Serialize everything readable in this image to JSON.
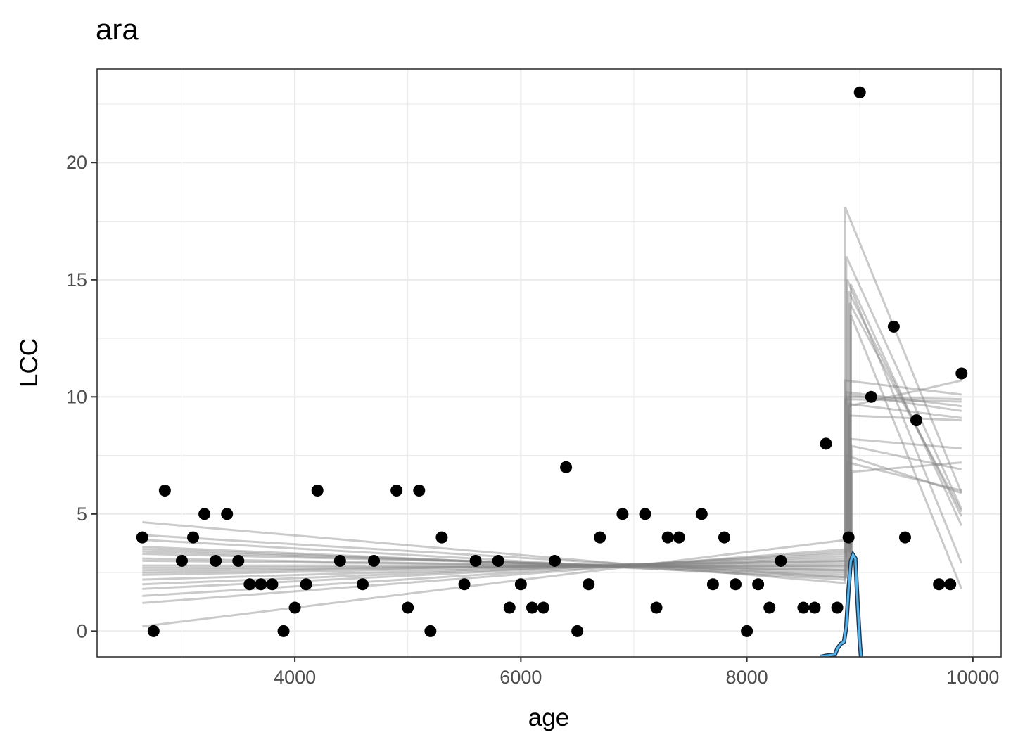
{
  "chart_data": {
    "type": "scatter",
    "title": "ara",
    "xlabel": "age",
    "ylabel": "LCC",
    "xlim": [
      2250,
      10250
    ],
    "ylim": [
      -1.1,
      24
    ],
    "x_ticks": [
      4000,
      6000,
      8000,
      10000
    ],
    "y_ticks": [
      0,
      5,
      10,
      15,
      20
    ],
    "grid": true,
    "colors": {
      "points": "#000000",
      "fit_lines": "#808080",
      "density_curve": "#56B4E9",
      "panel_border": "#333333",
      "grid_major": "#ebebeb"
    },
    "points": [
      {
        "x": 2650,
        "y": 4
      },
      {
        "x": 2750,
        "y": 0
      },
      {
        "x": 2850,
        "y": 6
      },
      {
        "x": 3000,
        "y": 3
      },
      {
        "x": 3100,
        "y": 4
      },
      {
        "x": 3200,
        "y": 5
      },
      {
        "x": 3300,
        "y": 3
      },
      {
        "x": 3400,
        "y": 5
      },
      {
        "x": 3500,
        "y": 3
      },
      {
        "x": 3600,
        "y": 2
      },
      {
        "x": 3700,
        "y": 2
      },
      {
        "x": 3800,
        "y": 2
      },
      {
        "x": 3900,
        "y": 0
      },
      {
        "x": 4000,
        "y": 1
      },
      {
        "x": 4100,
        "y": 2
      },
      {
        "x": 4200,
        "y": 6
      },
      {
        "x": 4400,
        "y": 3
      },
      {
        "x": 4600,
        "y": 2
      },
      {
        "x": 4700,
        "y": 3
      },
      {
        "x": 4900,
        "y": 6
      },
      {
        "x": 5000,
        "y": 1
      },
      {
        "x": 5100,
        "y": 6
      },
      {
        "x": 5200,
        "y": 0
      },
      {
        "x": 5300,
        "y": 4
      },
      {
        "x": 5500,
        "y": 2
      },
      {
        "x": 5600,
        "y": 3
      },
      {
        "x": 5800,
        "y": 3
      },
      {
        "x": 5900,
        "y": 1
      },
      {
        "x": 6000,
        "y": 2
      },
      {
        "x": 6100,
        "y": 1
      },
      {
        "x": 6200,
        "y": 1
      },
      {
        "x": 6300,
        "y": 3
      },
      {
        "x": 6400,
        "y": 7
      },
      {
        "x": 6500,
        "y": 0
      },
      {
        "x": 6600,
        "y": 2
      },
      {
        "x": 6700,
        "y": 4
      },
      {
        "x": 6900,
        "y": 5
      },
      {
        "x": 7100,
        "y": 5
      },
      {
        "x": 7200,
        "y": 1
      },
      {
        "x": 7300,
        "y": 4
      },
      {
        "x": 7400,
        "y": 4
      },
      {
        "x": 7600,
        "y": 5
      },
      {
        "x": 7700,
        "y": 2
      },
      {
        "x": 7800,
        "y": 4
      },
      {
        "x": 7900,
        "y": 2
      },
      {
        "x": 8000,
        "y": 0
      },
      {
        "x": 8100,
        "y": 2
      },
      {
        "x": 8200,
        "y": 1
      },
      {
        "x": 8300,
        "y": 3
      },
      {
        "x": 8500,
        "y": 1
      },
      {
        "x": 8600,
        "y": 1
      },
      {
        "x": 8700,
        "y": 8
      },
      {
        "x": 8800,
        "y": 1
      },
      {
        "x": 8900,
        "y": 4
      },
      {
        "x": 9000,
        "y": 23
      },
      {
        "x": 9100,
        "y": 10
      },
      {
        "x": 9300,
        "y": 13
      },
      {
        "x": 9400,
        "y": 4
      },
      {
        "x": 9500,
        "y": 9
      },
      {
        "x": 9700,
        "y": 2
      },
      {
        "x": 9800,
        "y": 2
      },
      {
        "x": 9900,
        "y": 11
      }
    ],
    "fit_lines": {
      "x_start": 2650,
      "x_end": 9900,
      "segments": [
        {
          "break": 8870,
          "pre": [
            4.65,
            2.05
          ],
          "post": [
            18.1,
            5.9
          ]
        },
        {
          "break": 8880,
          "pre": [
            4.1,
            2.3
          ],
          "post": [
            16.0,
            5.2
          ]
        },
        {
          "break": 8890,
          "pre": [
            0.2,
            3.9
          ],
          "post": [
            15.0,
            2.9
          ]
        },
        {
          "break": 8900,
          "pre": [
            1.2,
            3.5
          ],
          "post": [
            14.5,
            4.9
          ]
        },
        {
          "break": 8910,
          "pre": [
            1.5,
            3.4
          ],
          "post": [
            14.0,
            5.1
          ]
        },
        {
          "break": 8920,
          "pre": [
            3.5,
            2.4
          ],
          "post": [
            13.5,
            1.8
          ]
        },
        {
          "break": 8870,
          "pre": [
            3.9,
            2.2
          ],
          "post": [
            10.7,
            10.1
          ]
        },
        {
          "break": 8880,
          "pre": [
            2.0,
            3.2
          ],
          "post": [
            10.2,
            9.6
          ]
        },
        {
          "break": 8890,
          "pre": [
            3.3,
            2.6
          ],
          "post": [
            10.0,
            9.9
          ]
        },
        {
          "break": 8900,
          "pre": [
            2.8,
            2.8
          ],
          "post": [
            9.6,
            10.7
          ]
        },
        {
          "break": 8910,
          "pre": [
            2.6,
            2.9
          ],
          "post": [
            9.2,
            9.0
          ]
        },
        {
          "break": 8920,
          "pre": [
            3.0,
            2.7
          ],
          "post": [
            8.2,
            7.8
          ]
        },
        {
          "break": 8930,
          "pre": [
            2.5,
            3.0
          ],
          "post": [
            7.9,
            6.9
          ]
        },
        {
          "break": 8880,
          "pre": [
            3.6,
            2.3
          ],
          "post": [
            7.5,
            5.9
          ]
        },
        {
          "break": 8890,
          "pre": [
            2.2,
            3.1
          ],
          "post": [
            7.2,
            6.0
          ]
        },
        {
          "break": 8900,
          "pre": [
            3.1,
            2.6
          ],
          "post": [
            9.7,
            9.1
          ]
        },
        {
          "break": 8910,
          "pre": [
            2.4,
            3.0
          ],
          "post": [
            10.1,
            9.4
          ]
        },
        {
          "break": 8920,
          "pre": [
            3.4,
            2.5
          ],
          "post": [
            14.8,
            4.5
          ]
        },
        {
          "break": 8930,
          "pre": [
            2.7,
            2.8
          ],
          "post": [
            6.8,
            7.2
          ]
        },
        {
          "break": 8870,
          "pre": [
            1.8,
            3.3
          ],
          "post": [
            9.9,
            9.8
          ]
        }
      ]
    },
    "density_curve": [
      [
        8650,
        -1.1
      ],
      [
        8700,
        -1.05
      ],
      [
        8780,
        -1.0
      ],
      [
        8800,
        -0.75
      ],
      [
        8830,
        -0.55
      ],
      [
        8860,
        -0.45
      ],
      [
        8880,
        0.2
      ],
      [
        8900,
        1.8
      ],
      [
        8920,
        3.0
      ],
      [
        8940,
        3.25
      ],
      [
        8960,
        3.1
      ],
      [
        8980,
        1.2
      ],
      [
        9000,
        -0.5
      ],
      [
        9010,
        -1.1
      ]
    ]
  }
}
